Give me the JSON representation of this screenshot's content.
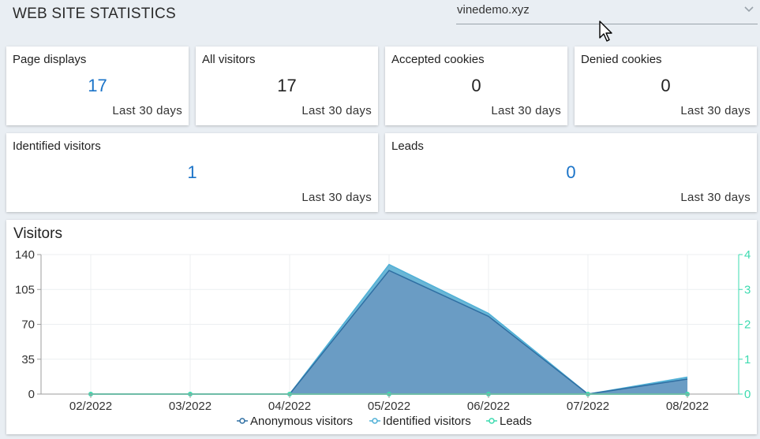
{
  "header": {
    "title": "WEB SITE STATISTICS"
  },
  "site_select": {
    "value": "vinedemo.xyz"
  },
  "cards": {
    "page_displays": {
      "label": "Page displays",
      "value": "17",
      "period": "Last 30 days"
    },
    "all_visitors": {
      "label": "All visitors",
      "value": "17",
      "period": "Last 30 days"
    },
    "accepted_cookies": {
      "label": "Accepted cookies",
      "value": "0",
      "period": "Last 30 days"
    },
    "denied_cookies": {
      "label": "Denied cookies",
      "value": "0",
      "period": "Last 30 days"
    },
    "identified_visitors": {
      "label": "Identified visitors",
      "value": "1",
      "period": "Last 30 days"
    },
    "leads": {
      "label": "Leads",
      "value": "0",
      "period": "Last 30 days"
    }
  },
  "colors": {
    "accent_blue": "#1a73c8",
    "anonymous": "#2f6fa3",
    "identified": "#4fb0d6",
    "leads": "#3ddbb0"
  },
  "chart_data": {
    "type": "area",
    "title": "Visitors",
    "categories": [
      "02/2022",
      "03/2022",
      "04/2022",
      "05/2022",
      "06/2022",
      "07/2022",
      "08/2022"
    ],
    "series": [
      {
        "name": "Anonymous visitors",
        "axis": "left",
        "values": [
          0,
          0,
          0,
          124,
          78,
          0,
          15
        ]
      },
      {
        "name": "Identified visitors",
        "axis": "left",
        "values": [
          0,
          0,
          0,
          6,
          3,
          0,
          2
        ]
      },
      {
        "name": "Leads",
        "axis": "right",
        "values": [
          0,
          0,
          0,
          0,
          0,
          0,
          0
        ]
      }
    ],
    "y_left": {
      "range": [
        0,
        140
      ],
      "ticks": [
        "0",
        "35",
        "70",
        "105",
        "140"
      ]
    },
    "y_right": {
      "range": [
        0,
        4
      ],
      "ticks": [
        "0",
        "1",
        "2",
        "3",
        "4"
      ]
    },
    "grid": true,
    "legend": "bottom"
  }
}
